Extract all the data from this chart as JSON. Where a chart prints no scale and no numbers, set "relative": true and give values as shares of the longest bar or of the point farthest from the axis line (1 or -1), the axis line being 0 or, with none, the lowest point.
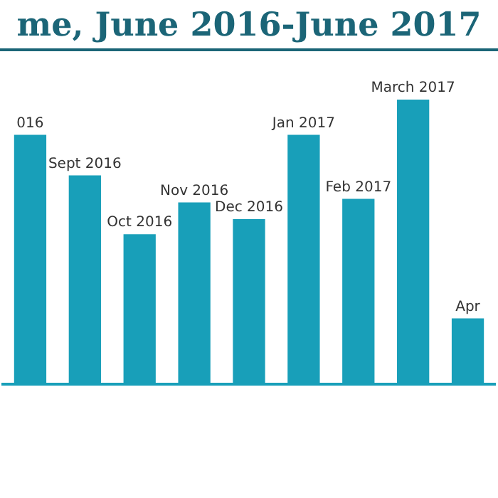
{
  "chart_data": {
    "type": "bar",
    "title": "me, June 2016-June 2017",
    "categories": [
      "016",
      "Sept 2016",
      "Oct 2016",
      "Nov 2016",
      "Dec 2016",
      "Jan 2017",
      "Feb 2017",
      "March 2017",
      "Apr"
    ],
    "values": [
      0.876,
      0.734,
      0.527,
      0.639,
      0.58,
      0.876,
      0.651,
      1,
      0.231
    ],
    "color": "#189fb9",
    "relative": true,
    "grid": false,
    "legend": false
  }
}
